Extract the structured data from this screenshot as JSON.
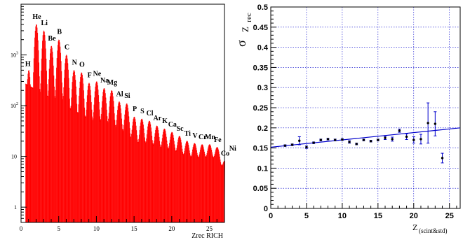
{
  "chart_data": [
    {
      "type": "bar",
      "xlabel": "Zrec RICH",
      "ylabel": "",
      "x_ticks": [
        0,
        5,
        10,
        15,
        20,
        25
      ],
      "y_ticks": [
        "1",
        "10",
        "10^2",
        "10^3"
      ],
      "xlim": [
        0,
        27
      ],
      "ylim": [
        0.5,
        10000
      ],
      "log_y": true,
      "color": "#ff0000",
      "element_labels": [
        "H",
        "He",
        "Li",
        "Be",
        "B",
        "C",
        "N",
        "O",
        "F",
        "Ne",
        "Na",
        "Mg",
        "Al",
        "Si",
        "P",
        "S",
        "Cl",
        "Ar",
        "K",
        "Ca",
        "Sc",
        "Ti",
        "V",
        "Cr",
        "Mn",
        "Fe",
        "Co",
        "Ni"
      ],
      "peaks": [
        {
          "z": 1,
          "value": 500
        },
        {
          "z": 2,
          "value": 4000
        },
        {
          "z": 3,
          "value": 3000
        },
        {
          "z": 4,
          "value": 1500
        },
        {
          "z": 5,
          "value": 2000
        },
        {
          "z": 6,
          "value": 1000
        },
        {
          "z": 7,
          "value": 500
        },
        {
          "z": 8,
          "value": 450
        },
        {
          "z": 9,
          "value": 280
        },
        {
          "z": 10,
          "value": 300
        },
        {
          "z": 11,
          "value": 220
        },
        {
          "z": 12,
          "value": 200
        },
        {
          "z": 13,
          "value": 120
        },
        {
          "z": 14,
          "value": 110
        },
        {
          "z": 15,
          "value": 60
        },
        {
          "z": 16,
          "value": 55
        },
        {
          "z": 17,
          "value": 50
        },
        {
          "z": 18,
          "value": 40
        },
        {
          "z": 19,
          "value": 35
        },
        {
          "z": 20,
          "value": 30
        },
        {
          "z": 21,
          "value": 25
        },
        {
          "z": 22,
          "value": 20
        },
        {
          "z": 23,
          "value": 18
        },
        {
          "z": 24,
          "value": 17
        },
        {
          "z": 25,
          "value": 17
        },
        {
          "z": 26,
          "value": 15
        },
        {
          "z": 27,
          "value": 8
        }
      ]
    },
    {
      "type": "scatter",
      "ylabel_base": "σ",
      "ylabel_sub": "Z",
      "ylabel_subsub": "rec",
      "xlabel_base": "Z",
      "xlabel_sub": "(scint&std)",
      "x_ticks": [
        0,
        5,
        10,
        15,
        20,
        25
      ],
      "y_ticks": [
        "0",
        "0.05",
        "0.1",
        "0.15",
        "0.2",
        "0.25",
        "0.3",
        "0.35",
        "0.4",
        "0.45",
        "0.5"
      ],
      "xlim": [
        0,
        26.5
      ],
      "ylim": [
        0,
        0.5
      ],
      "grid": true,
      "points": [
        {
          "x": 2,
          "y": 0.156,
          "err": 0.002
        },
        {
          "x": 3,
          "y": 0.158,
          "err": 0.002
        },
        {
          "x": 4,
          "y": 0.168,
          "err": 0.01
        },
        {
          "x": 5,
          "y": 0.152,
          "err": 0.003
        },
        {
          "x": 6,
          "y": 0.163,
          "err": 0.002
        },
        {
          "x": 7,
          "y": 0.17,
          "err": 0.002
        },
        {
          "x": 8,
          "y": 0.172,
          "err": 0.002
        },
        {
          "x": 9,
          "y": 0.17,
          "err": 0.002
        },
        {
          "x": 10,
          "y": 0.171,
          "err": 0.002
        },
        {
          "x": 11,
          "y": 0.165,
          "err": 0.003
        },
        {
          "x": 12,
          "y": 0.16,
          "err": 0.002
        },
        {
          "x": 13,
          "y": 0.17,
          "err": 0.002
        },
        {
          "x": 14,
          "y": 0.167,
          "err": 0.002
        },
        {
          "x": 15,
          "y": 0.17,
          "err": 0.002
        },
        {
          "x": 16,
          "y": 0.175,
          "err": 0.004
        },
        {
          "x": 17,
          "y": 0.172,
          "err": 0.005
        },
        {
          "x": 18,
          "y": 0.193,
          "err": 0.004
        },
        {
          "x": 19,
          "y": 0.178,
          "err": 0.007
        },
        {
          "x": 20,
          "y": 0.17,
          "err": 0.008
        },
        {
          "x": 21,
          "y": 0.172,
          "err": 0.012
        },
        {
          "x": 22,
          "y": 0.212,
          "err": 0.05
        },
        {
          "x": 23,
          "y": 0.21,
          "err": 0.03
        },
        {
          "x": 24,
          "y": 0.125,
          "err": 0.012
        }
      ],
      "fit_line": {
        "x": [
          0,
          26.5
        ],
        "y": [
          0.152,
          0.2
        ]
      },
      "color": "#0000cc"
    }
  ]
}
